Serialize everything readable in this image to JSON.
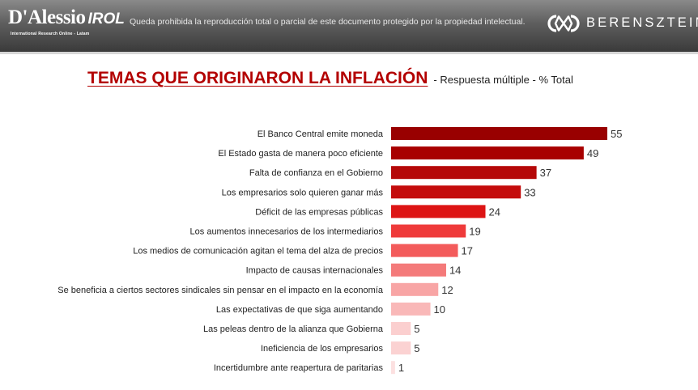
{
  "header": {
    "logo_main": "D'Alessio",
    "logo_suffix": "IROL",
    "logo_tagline": "International Research Online - Latam",
    "disclaimer": "Queda prohibida la reproducción total o parcial de este documento protegido por la propiedad intelectual.",
    "brand": "BERENSZTEIN"
  },
  "chart_data": {
    "type": "bar",
    "orientation": "horizontal",
    "title": "TEMAS QUE ORIGINARON LA INFLACIÓN",
    "subtitle": "- Respuesta múltiple - % Total",
    "xlim": [
      0,
      55
    ],
    "grid": false,
    "categories": [
      "El Banco Central emite moneda",
      "El Estado gasta de manera poco eficiente",
      "Falta de confianza en el Gobierno",
      "Los empresarios solo quieren ganar más",
      "Déficit de las empresas públicas",
      "Los aumentos innecesarios de los intermediarios",
      "Los medios de comunicación agitan el tema del alza de precios",
      "Impacto de causas internacionales",
      "Se beneficia a ciertos sectores sindicales sin pensar en el impacto en la economía",
      "Las expectativas de que siga aumentando",
      "Las peleas dentro de la alianza que Gobierna",
      "Ineficiencia de los empresarios",
      "Incertidumbre ante reapertura de paritarias"
    ],
    "values": [
      55,
      49,
      37,
      33,
      24,
      19,
      17,
      14,
      12,
      10,
      5,
      5,
      1
    ],
    "colors": [
      "#990000",
      "#a80000",
      "#b50808",
      "#c40c0c",
      "#dd1414",
      "#ef3a3a",
      "#f35b5b",
      "#f47a7a",
      "#f8a5a5",
      "#f9b8b8",
      "#fbcfcf",
      "#fbd2d2",
      "#fce0e0"
    ]
  }
}
